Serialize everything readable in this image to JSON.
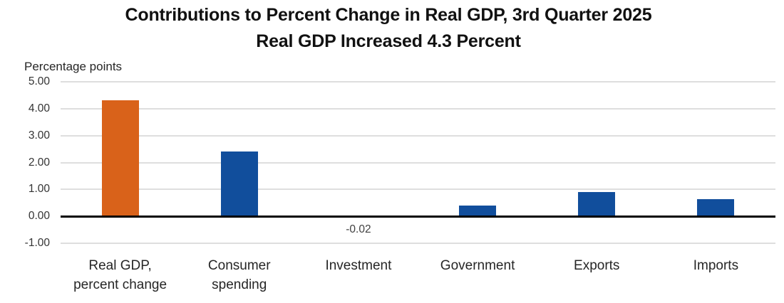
{
  "title": {
    "line1": "Contributions to Percent Change in Real GDP, 3rd Quarter 2025",
    "line2": "Real GDP Increased 4.3 Percent"
  },
  "chart_data": {
    "type": "bar",
    "title": "Contributions to Percent Change in Real GDP, 3rd Quarter 2025",
    "subtitle": "Real GDP Increased 4.3 Percent",
    "unit_label": "Percentage points",
    "xlabel": "",
    "ylabel": "Percentage points",
    "categories": [
      {
        "lines": [
          "Real GDP,",
          "percent change"
        ]
      },
      {
        "lines": [
          "Consumer",
          "spending"
        ]
      },
      {
        "lines": [
          "Investment"
        ]
      },
      {
        "lines": [
          "Government"
        ]
      },
      {
        "lines": [
          "Exports"
        ]
      },
      {
        "lines": [
          "Imports"
        ]
      }
    ],
    "values": [
      4.3,
      2.4,
      -0.02,
      0.4,
      0.9,
      0.65
    ],
    "bar_colors": [
      "#D9621A",
      "#114E9C",
      "#114E9C",
      "#114E9C",
      "#114E9C",
      "#114E9C"
    ],
    "data_labels": [
      "",
      "",
      "-0.02",
      "",
      "",
      ""
    ],
    "ylim": [
      -1,
      5
    ],
    "yticks": [
      {
        "value": 5,
        "label": "5.00"
      },
      {
        "value": 4,
        "label": "4.00"
      },
      {
        "value": 3,
        "label": "3.00"
      },
      {
        "value": 2,
        "label": "2.00"
      },
      {
        "value": 1,
        "label": "1.00"
      },
      {
        "value": 0,
        "label": "0.00"
      },
      {
        "value": -1,
        "label": "-1.00"
      }
    ],
    "grid": true,
    "legend": "none",
    "colors": {
      "gridline": "#DEDEDE",
      "axis": "#000000",
      "accent_orange": "#D9621A",
      "series_blue": "#114E9C",
      "text": "#262626"
    }
  }
}
